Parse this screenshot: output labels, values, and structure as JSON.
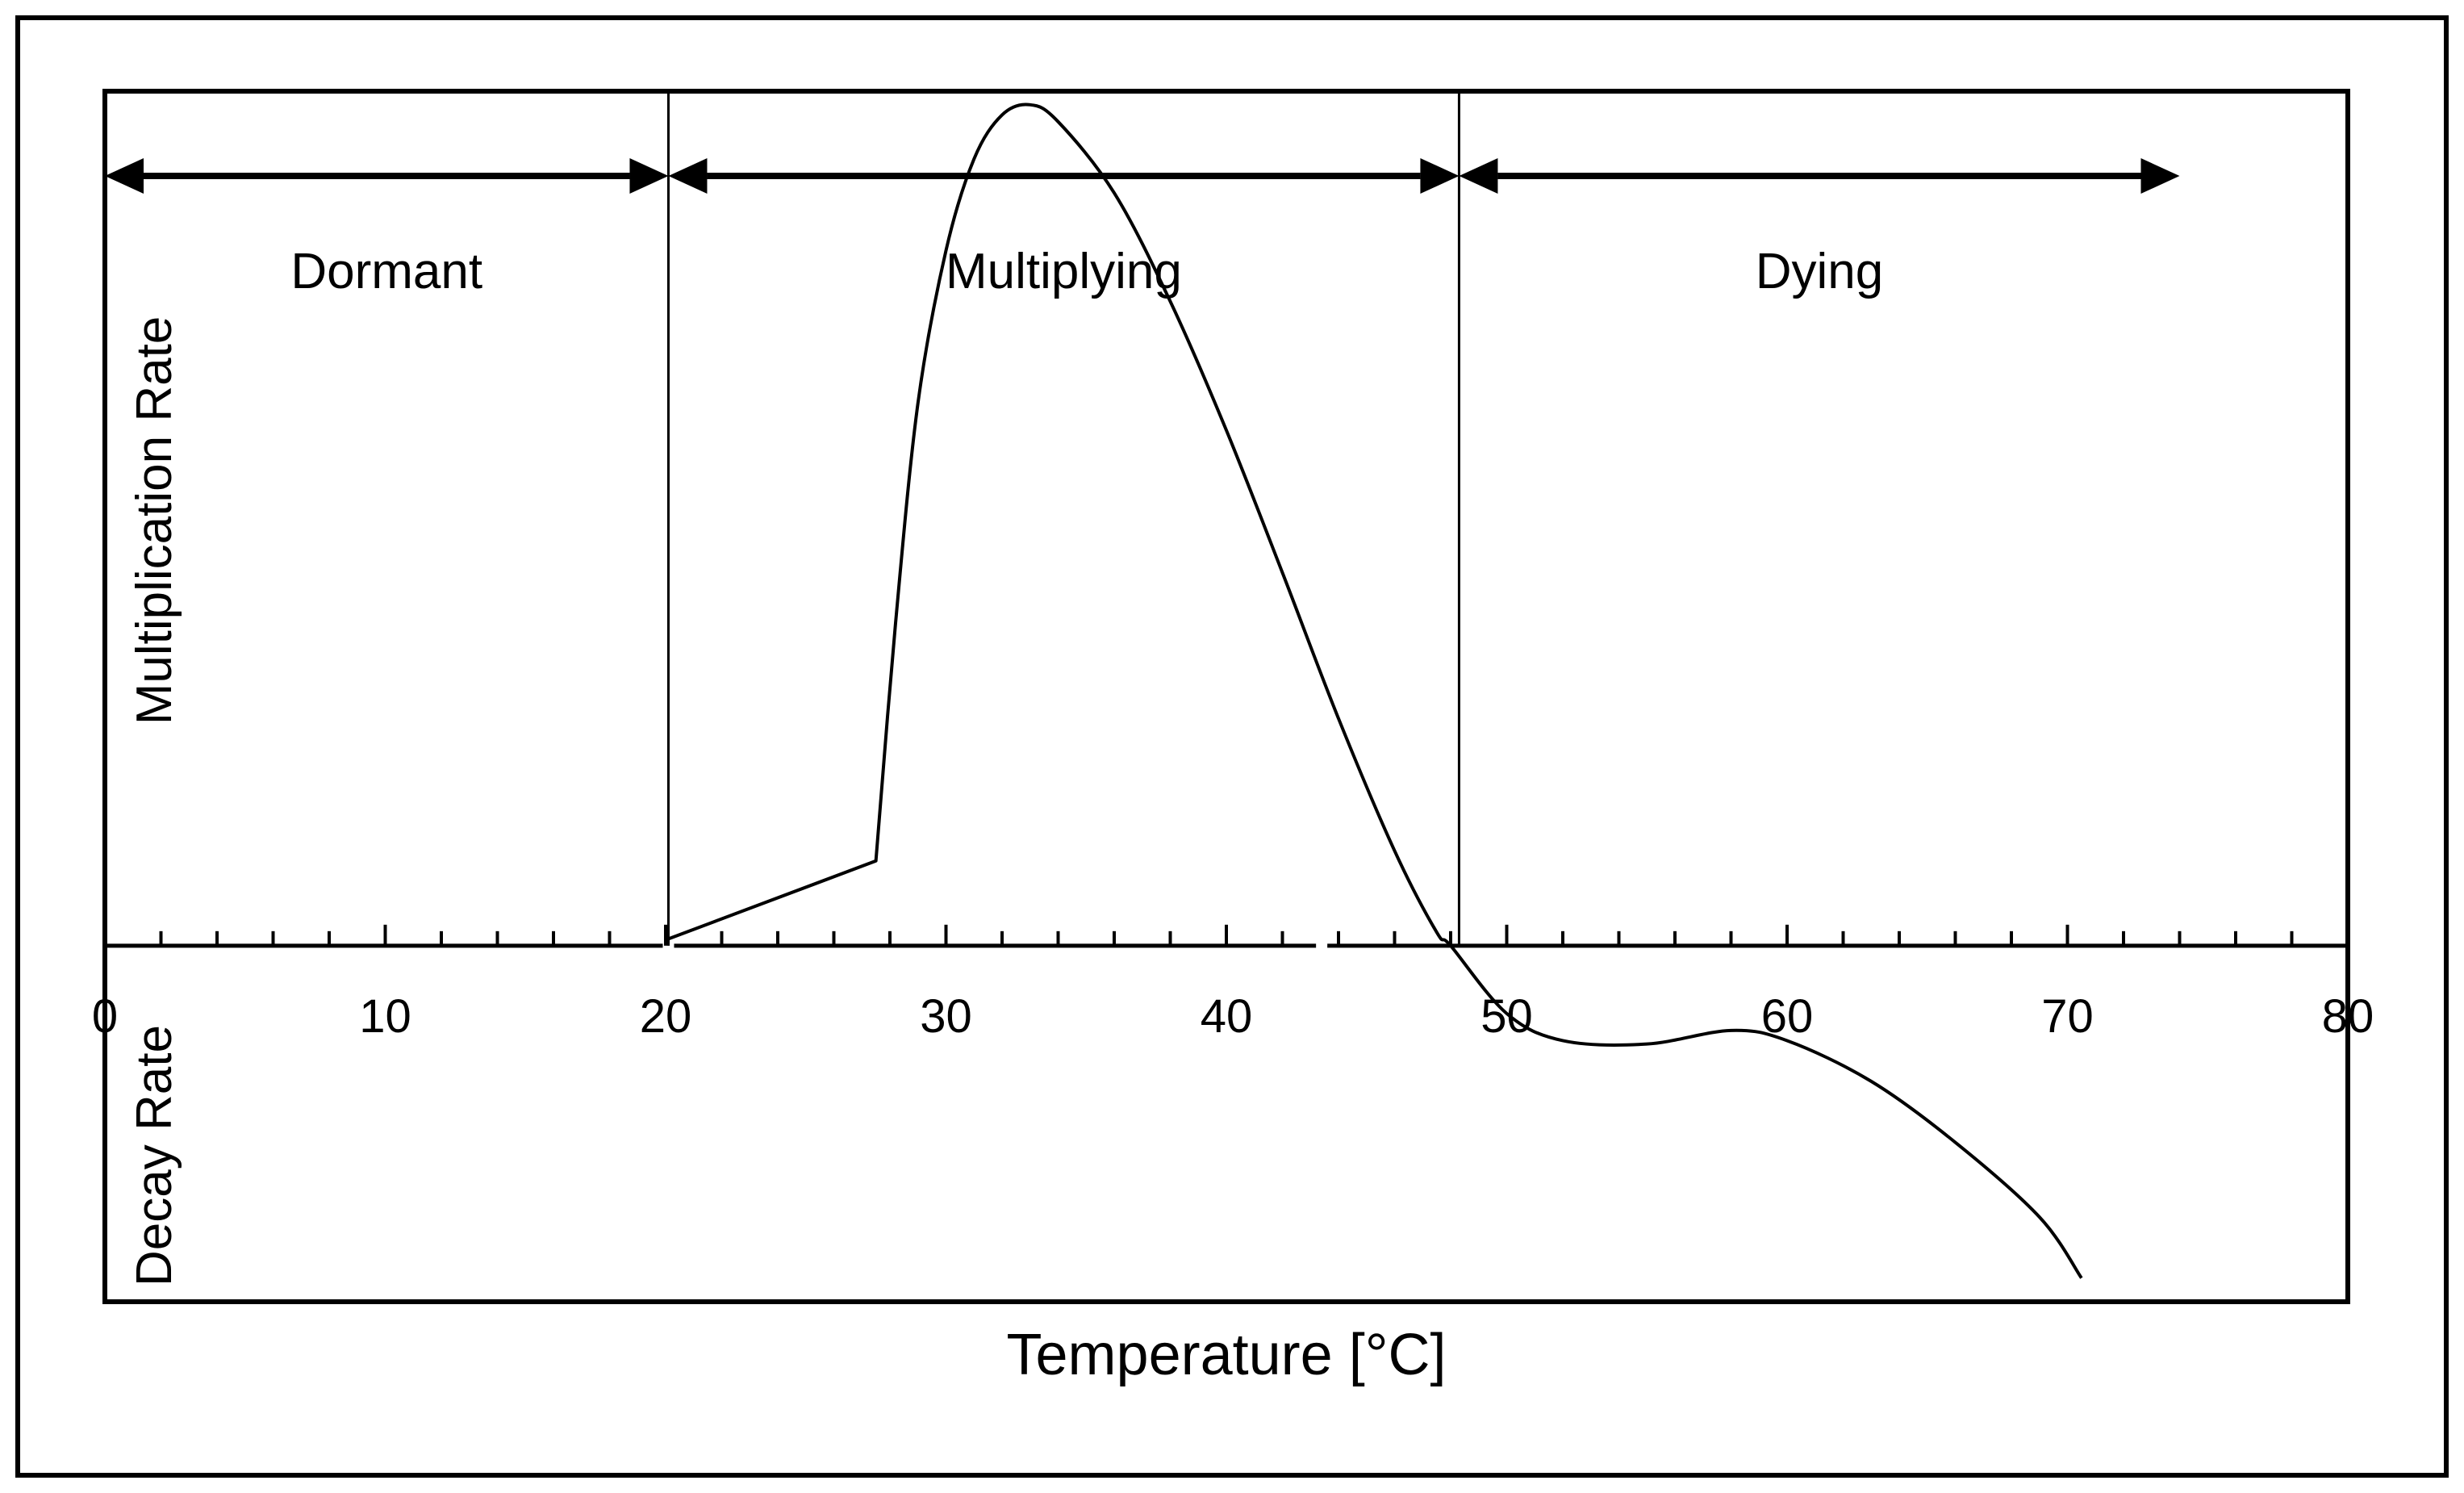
{
  "colors": {
    "ink": "#000000",
    "background": "#ffffff"
  },
  "chart_data": {
    "type": "line",
    "title": "",
    "xlabel": "Temperature [°C]",
    "ylabel_top": "Multiplication Rate",
    "ylabel_bottom": "Decay Rate",
    "xlim": [
      0,
      80
    ],
    "ylim": [
      -105,
      252
    ],
    "x_ticks": [
      "0",
      "10",
      "20",
      "30",
      "40",
      "50",
      "60",
      "70",
      "80"
    ],
    "x_tick_values": [
      0,
      10,
      20,
      30,
      40,
      50,
      60,
      70,
      80
    ],
    "minor_tick_step": 2,
    "regions": [
      {
        "name": "Dormant",
        "start": 0,
        "end": 20.1
      },
      {
        "name": "Multiplying",
        "start": 20.1,
        "end": 48.3
      },
      {
        "name": "Dying",
        "start": 48.3,
        "end": 74
      }
    ],
    "boundaries": [
      20.1,
      48.3
    ],
    "series": [
      {
        "name": "rate",
        "points": [
          [
            20.1,
            2
          ],
          [
            27.5,
            25
          ],
          [
            28.2,
            95
          ],
          [
            29.0,
            160
          ],
          [
            30.0,
            205
          ],
          [
            31.0,
            232
          ],
          [
            32.0,
            245
          ],
          [
            33.0,
            248
          ],
          [
            34.0,
            243
          ],
          [
            36.0,
            222
          ],
          [
            38.0,
            190
          ],
          [
            40.0,
            152
          ],
          [
            42.0,
            110
          ],
          [
            44.0,
            67
          ],
          [
            46.0,
            28
          ],
          [
            47.5,
            4
          ],
          [
            48.0,
            0
          ],
          [
            50.0,
            -20
          ],
          [
            52.0,
            -28
          ],
          [
            55.0,
            -29
          ],
          [
            58.0,
            -25
          ],
          [
            60.0,
            -28
          ],
          [
            63.0,
            -40
          ],
          [
            66.0,
            -58
          ],
          [
            69.0,
            -80
          ],
          [
            70.5,
            -98
          ]
        ]
      }
    ]
  }
}
